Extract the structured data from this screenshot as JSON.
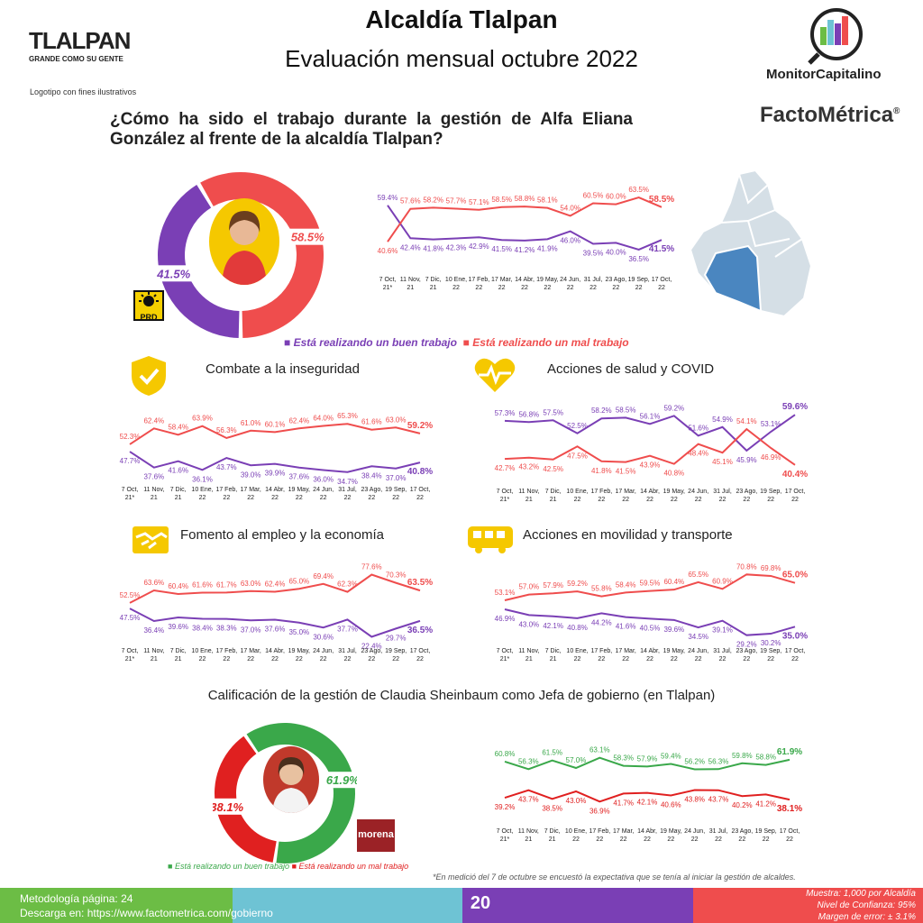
{
  "header": {
    "title": "Alcaldía Tlalpan",
    "subtitle": "Evaluación mensual octubre 2022"
  },
  "logo": {
    "name": "TLALPAN",
    "tagline": "GRANDE COMO SU GENTE",
    "note": "Logotipo con fines ilustrativos"
  },
  "brands": {
    "monitor": "MonitorCapitalino",
    "facto": "FactoMétrica",
    "facto_mark": "®"
  },
  "question": "¿Cómo ha sido el trabajo durante la gestión de Alfa Eliana González al frente de la alcaldía Tlalpan?",
  "party_badges": {
    "prd": "PRD",
    "morena": "morena"
  },
  "colors": {
    "good": "#7a3fb5",
    "bad": "#ef4d4d",
    "green": "#3aa84a",
    "red": "#e02020"
  },
  "legend": {
    "good": "Está realizando un buen trabajo",
    "bad": "Está realizando un mal trabajo"
  },
  "sections": {
    "inseguridad": "Combate a la inseguridad",
    "salud": "Acciones de salud y COVID",
    "empleo": "Fomento al empleo y la economía",
    "movilidad": "Acciones en movilidad y transporte",
    "sheinbaum": "Calificación de la gestión de Claudia Sheinbaum como Jefa de gobierno (en Tlalpan)"
  },
  "footnote": "*En medició del 7 de octubre se encuestó la expectativa que se tenía al iniciar la gestión de alcaldes.",
  "footer": {
    "metodologia": "Metodología página: 24",
    "descarga_label": "Descarga en: ",
    "descarga_url": "https://www.factometrica.com/gobierno",
    "page": "20",
    "muestra": "Muestra:  1,000 por Alcaldía",
    "confianza": "Nivel de Confianza: 95%",
    "margen": "Margen de error: ± 3.1%"
  },
  "chart_data": [
    {
      "id": "main",
      "type": "line",
      "categories": [
        "7 Oct, 21*",
        "11 Nov, 21",
        "7 Dic, 21",
        "10 Ene, 22",
        "17 Feb, 22",
        "17 Mar, 22",
        "14 Abr, 22",
        "19 May, 22",
        "24 Jun, 22",
        "31 Jul, 22",
        "23 Ago, 22",
        "19 Sep, 22",
        "17 Oct, 22"
      ],
      "series": [
        {
          "name": "Está realizando un buen trabajo",
          "color": "#7a3fb5",
          "values": [
            59.4,
            42.4,
            41.8,
            42.3,
            42.9,
            41.5,
            41.2,
            41.9,
            46.0,
            39.5,
            40.0,
            36.5,
            41.5
          ]
        },
        {
          "name": "Está realizando un mal trabajo",
          "color": "#ef4d4d",
          "values": [
            40.6,
            57.6,
            58.2,
            57.7,
            57.1,
            58.5,
            58.8,
            58.1,
            54.0,
            60.5,
            60.0,
            63.5,
            58.5
          ]
        }
      ]
    },
    {
      "id": "inseguridad",
      "type": "line",
      "title": "Combate a la inseguridad",
      "categories": [
        "7 Oct, 21*",
        "11 Nov, 21",
        "7 Dic, 21",
        "10 Ene, 22",
        "17 Feb, 22",
        "17 Mar, 22",
        "14 Abr, 22",
        "19 May, 22",
        "24 Jun, 22",
        "31 Jul, 22",
        "23 Ago, 22",
        "19 Sep, 22",
        "17 Oct, 22"
      ],
      "series": [
        {
          "color": "#ef4d4d",
          "values": [
            52.3,
            62.4,
            58.4,
            63.9,
            56.3,
            61.0,
            60.1,
            62.4,
            64.0,
            65.3,
            61.6,
            63.0,
            59.2
          ]
        },
        {
          "color": "#7a3fb5",
          "values": [
            47.7,
            37.6,
            41.6,
            36.1,
            43.7,
            39.0,
            39.9,
            37.6,
            36.0,
            34.7,
            38.4,
            37.0,
            40.8
          ]
        }
      ]
    },
    {
      "id": "salud",
      "type": "line",
      "title": "Acciones de salud y COVID",
      "categories": [
        "7 Oct, 21*",
        "11 Nov, 21",
        "7 Dic, 21",
        "10 Ene, 22",
        "17 Feb, 22",
        "17 Mar, 22",
        "14 Abr, 22",
        "19 May, 22",
        "24 Jun, 22",
        "31 Jul, 22",
        "23 Ago, 22",
        "19 Sep, 22",
        "17 Oct, 22"
      ],
      "series": [
        {
          "color": "#7a3fb5",
          "values": [
            57.3,
            56.8,
            57.5,
            52.5,
            58.2,
            58.5,
            56.1,
            59.2,
            51.6,
            54.9,
            45.9,
            53.1,
            59.6
          ]
        },
        {
          "color": "#ef4d4d",
          "values": [
            42.7,
            43.2,
            42.5,
            47.5,
            41.8,
            41.5,
            43.9,
            40.8,
            48.4,
            45.1,
            54.1,
            46.9,
            40.4
          ]
        }
      ]
    },
    {
      "id": "empleo",
      "type": "line",
      "title": "Fomento al empleo y la economía",
      "categories": [
        "7 Oct, 21*",
        "11 Nov, 21",
        "7 Dic, 21",
        "10 Ene, 22",
        "17 Feb, 22",
        "17 Mar, 22",
        "14 Abr, 22",
        "19 May, 22",
        "24 Jun, 22",
        "31 Jul, 22",
        "23 Ago, 22",
        "19 Sep, 22",
        "17 Oct, 22"
      ],
      "series": [
        {
          "color": "#ef4d4d",
          "values": [
            52.5,
            63.6,
            60.4,
            61.6,
            61.7,
            63.0,
            62.4,
            65.0,
            69.4,
            62.3,
            77.6,
            70.3,
            63.5
          ]
        },
        {
          "color": "#7a3fb5",
          "values": [
            47.5,
            36.4,
            39.6,
            38.4,
            38.3,
            37.0,
            37.6,
            35.0,
            30.6,
            37.7,
            22.4,
            29.7,
            36.5
          ]
        }
      ]
    },
    {
      "id": "movilidad",
      "type": "line",
      "title": "Acciones en movilidad y transporte",
      "categories": [
        "7 Oct, 21*",
        "11 Nov, 21",
        "7 Dic, 21",
        "10 Ene, 22",
        "17 Feb, 22",
        "17 Mar, 22",
        "14 Abr, 22",
        "19 May, 22",
        "24 Jun, 22",
        "31 Jul, 22",
        "23 Ago, 22",
        "19 Sep, 22",
        "17 Oct, 22"
      ],
      "series": [
        {
          "color": "#ef4d4d",
          "values": [
            53.1,
            57.0,
            57.9,
            59.2,
            55.8,
            58.4,
            59.5,
            60.4,
            65.5,
            60.9,
            70.8,
            69.8,
            65.0
          ]
        },
        {
          "color": "#7a3fb5",
          "values": [
            46.9,
            43.0,
            42.1,
            40.8,
            44.2,
            41.6,
            40.5,
            39.6,
            34.5,
            39.1,
            29.2,
            30.2,
            35.0
          ]
        }
      ]
    },
    {
      "id": "sheinbaum",
      "type": "line",
      "title": "Calificación de la gestión de Claudia Sheinbaum como Jefa de gobierno (en Tlalpan)",
      "categories": [
        "7 Oct, 21*",
        "11 Nov, 21",
        "7 Dic, 21",
        "10 Ene, 22",
        "17 Feb, 22",
        "17 Mar, 22",
        "14 Abr, 22",
        "19 May, 22",
        "24 Jun, 22",
        "31 Jul, 22",
        "23 Ago, 22",
        "19 Sep, 22",
        "17 Oct, 22"
      ],
      "series": [
        {
          "color": "#3aa84a",
          "values": [
            60.8,
            56.3,
            61.5,
            57.0,
            63.1,
            58.3,
            57.9,
            59.4,
            56.2,
            56.3,
            59.8,
            58.8,
            61.9
          ]
        },
        {
          "color": "#e02020",
          "values": [
            39.2,
            43.7,
            38.5,
            43.0,
            36.9,
            41.7,
            42.1,
            40.6,
            43.8,
            43.7,
            40.2,
            41.2,
            38.1
          ]
        }
      ]
    },
    {
      "id": "donut_main",
      "type": "pie",
      "slices": [
        {
          "label": "41.5%",
          "value": 41.5,
          "color": "#7a3fb5"
        },
        {
          "label": "58.5%",
          "value": 58.5,
          "color": "#ef4d4d"
        }
      ]
    },
    {
      "id": "donut_sheinbaum",
      "type": "pie",
      "slices": [
        {
          "label": "61.9%",
          "value": 61.9,
          "color": "#3aa84a"
        },
        {
          "label": "38.1%",
          "value": 38.1,
          "color": "#e02020"
        }
      ]
    }
  ]
}
